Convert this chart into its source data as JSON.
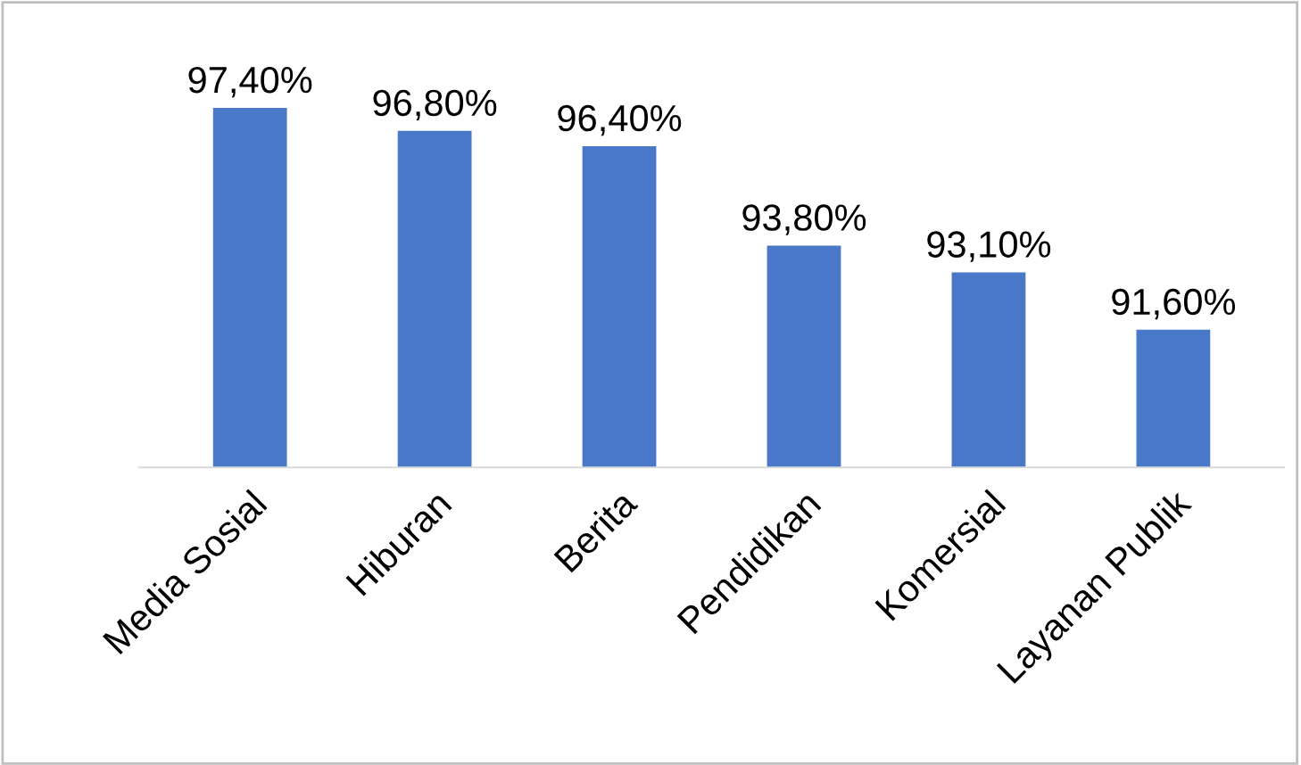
{
  "chart_data": {
    "type": "bar",
    "categories": [
      "Media Sosial",
      "Hiburan",
      "Berita",
      "Pendidikan",
      "Komersial",
      "Layanan Publik"
    ],
    "values": [
      97.4,
      96.8,
      96.4,
      93.8,
      93.1,
      91.6
    ],
    "value_labels": [
      "97,40%",
      "96,80%",
      "96,40%",
      "93,80%",
      "93,10%",
      "91,60%"
    ],
    "color": "#4a78c8",
    "ylim": [
      88,
      100
    ],
    "tick_labels": "x",
    "grid": false,
    "legend": false
  }
}
